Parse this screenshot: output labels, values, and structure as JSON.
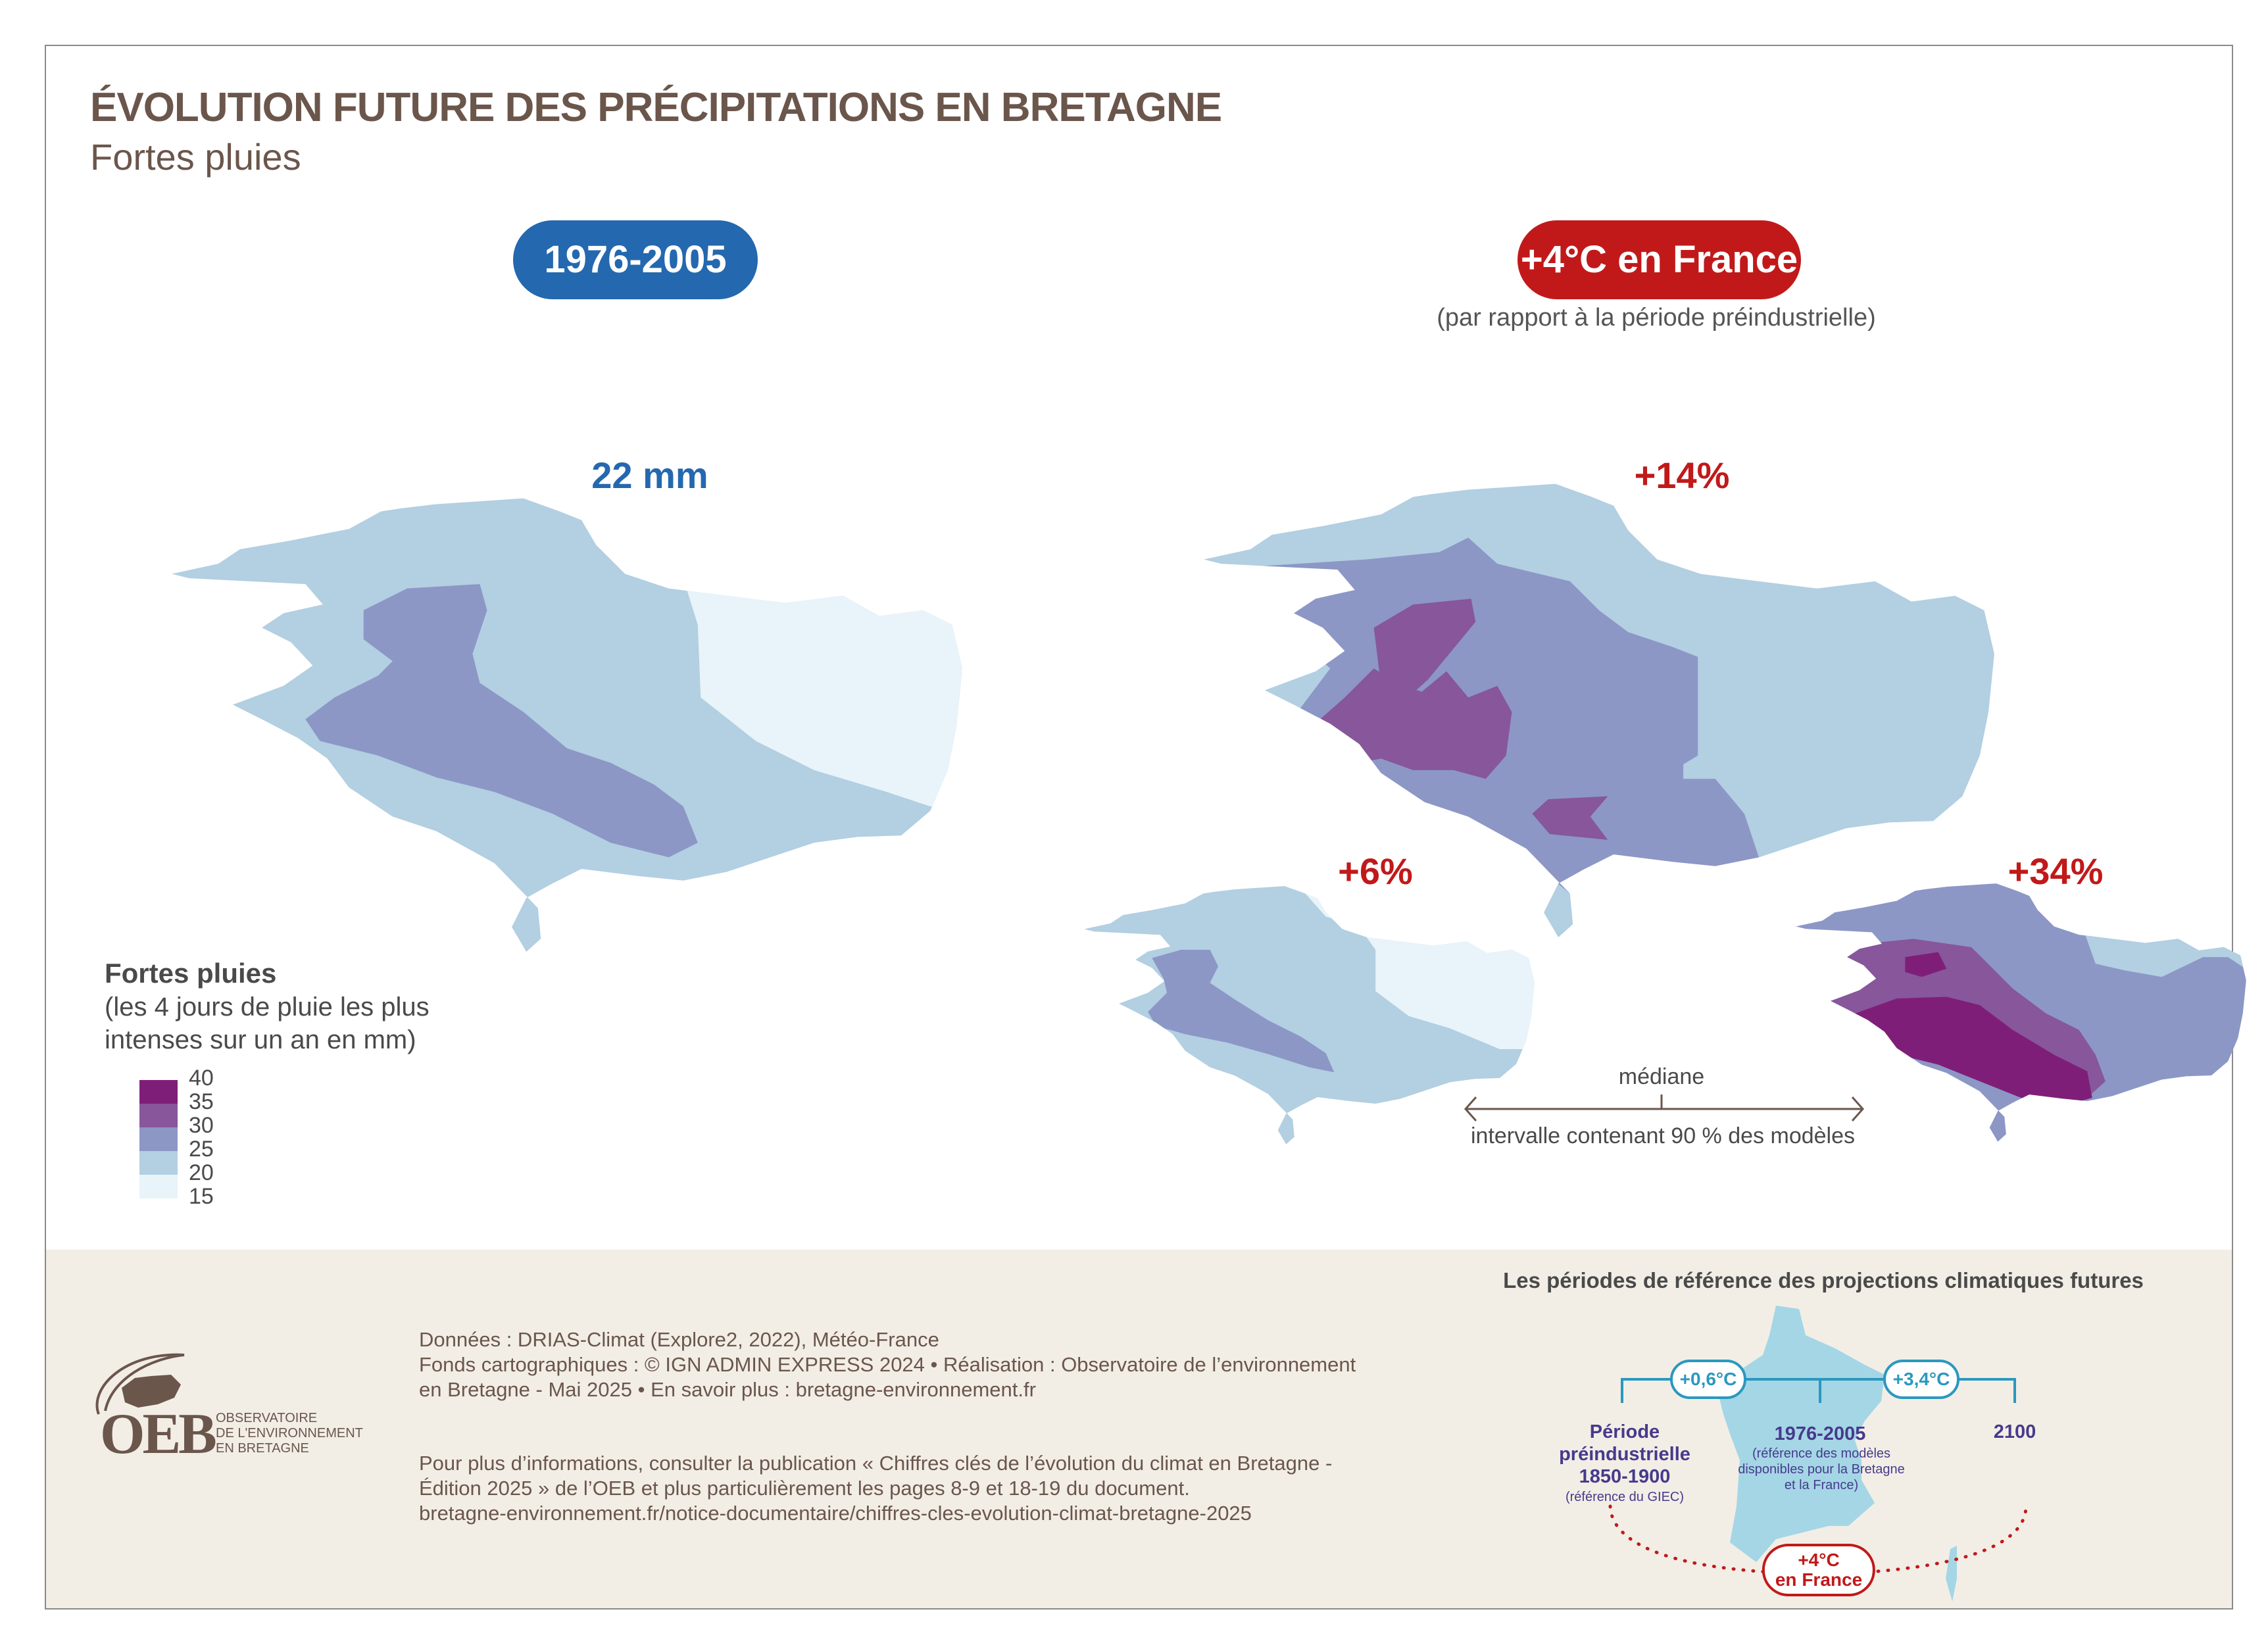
{
  "header": {
    "title": "ÉVOLUTION FUTURE DES PRÉCIPITATIONS EN BRETAGNE",
    "subtitle": "Fortes pluies"
  },
  "periods": {
    "baseline": {
      "label": "1976-2005",
      "color": "#2468af"
    },
    "future": {
      "label": "+4°C en France",
      "note": "(par rapport à la période préindustrielle)",
      "color": "#c1191a"
    }
  },
  "maps": {
    "baseline": {
      "label": "22 mm"
    },
    "median": {
      "label": "+14%"
    },
    "low": {
      "label": "+6%"
    },
    "high": {
      "label": "+34%"
    }
  },
  "interval_key": {
    "median_label": "médiane",
    "interval_label": "intervalle contenant 90 % des modèles"
  },
  "legend": {
    "title": "Fortes pluies",
    "description": "(les 4 jours de pluie les plus intenses sur un an en mm)",
    "classes": [
      {
        "from": 35,
        "to": 40,
        "color": "#7f1e78"
      },
      {
        "from": 30,
        "to": 35,
        "color": "#87569b"
      },
      {
        "from": 25,
        "to": 30,
        "color": "#8c97c6"
      },
      {
        "from": 20,
        "to": 25,
        "color": "#b3cfe2"
      },
      {
        "from": 15,
        "to": 20,
        "color": "#e8f4f9"
      }
    ],
    "ticks": [
      "40",
      "35",
      "30",
      "25",
      "20",
      "15"
    ]
  },
  "footer": {
    "logo": {
      "letters": "OEB",
      "line1": "OBSERVATOIRE",
      "line2": "DE L'ENVIRONNEMENT",
      "line3": "EN BRETAGNE"
    },
    "credits": [
      "Données : DRIAS-Climat (Explore2, 2022), Météo-France",
      "Fonds cartographiques : © IGN ADMIN EXPRESS 2024 • Réalisation : Observatoire de l’environnement",
      "en Bretagne - Mai 2025  • En savoir plus : bretagne-environnement.fr"
    ],
    "more_info": [
      "Pour plus d’informations, consulter la publication « Chiffres clés de l’évolution du climat en Bretagne -",
      "Édition 2025 » de l’OEB et plus particulièrement les pages 8-9 et 18-19 du document.",
      "bretagne-environnement.fr/notice-documentaire/chiffres-cles-evolution-climat-bretagne-2025"
    ]
  },
  "reference_periods": {
    "title": "Les périodes de référence des projections climatiques futures",
    "warming_1": "+0,6°C",
    "warming_2": "+3,4°C",
    "preindustrial": {
      "line1": "Période",
      "line2": "préindustrielle",
      "line3": "1850-1900",
      "note": "(référence du GIEC)"
    },
    "baseline": {
      "label": "1976-2005",
      "note1": "(référence des modèles",
      "note2": "disponibles pour la Bretagne",
      "note3": "et la France)"
    },
    "horizon": "2100",
    "target": {
      "line1": "+4°C",
      "line2": "en France"
    }
  }
}
